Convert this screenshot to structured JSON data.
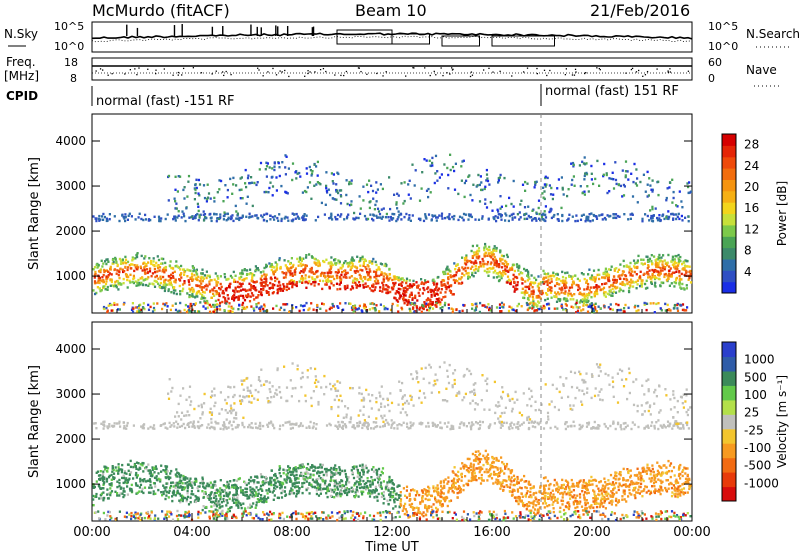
{
  "header": {
    "station": "McMurdo (fitACF)",
    "beam": "Beam 10",
    "date": "21/Feb/2016"
  },
  "aux": {
    "nsky_label": "N.Sky",
    "nsearch_label": "N.Search",
    "freq_label_1": "Freq.",
    "freq_label_2": "[MHz]",
    "nave_label": "Nave",
    "cpid_label": "CPID",
    "nsky_ticks": [
      "10^5",
      "10^0"
    ],
    "nsearch_ticks": [
      "10^5",
      "10^0"
    ],
    "freq_ticks": [
      "18",
      "8"
    ],
    "nave_ticks": [
      "60",
      "0"
    ],
    "cpid_segments": [
      "normal (fast) -151 RF",
      "normal (fast) 151 RF"
    ]
  },
  "time_axis": {
    "title": "Time UT",
    "ticks": [
      "00:00",
      "04:00",
      "08:00",
      "12:00",
      "16:00",
      "20:00",
      "00:00"
    ]
  },
  "chart_data": [
    {
      "type": "heatmap",
      "panel": "power",
      "xlabel": "Time UT",
      "ylabel": "Slant Range [km]",
      "x_range_hours": [
        0,
        24
      ],
      "y_ticks": [
        1000,
        2000,
        3000,
        4000
      ],
      "ylim": [
        180,
        4600
      ],
      "colorbar": {
        "label": "Power [dB]",
        "tick_labels": [
          "4",
          "8",
          "12",
          "16",
          "20",
          "24",
          "28"
        ],
        "colors": [
          "#1a2ee6",
          "#2f4fc4",
          "#2f6ea8",
          "#3c8a6a",
          "#4aa455",
          "#7cc94a",
          "#c7e03a",
          "#f3d51c",
          "#f6b014",
          "#f59410",
          "#f26d0d",
          "#ef4a0a",
          "#e52506",
          "#d60000"
        ]
      },
      "features": [
        {
          "name": "main band",
          "t_hours": [
            0,
            24
          ],
          "range_km": [
            500,
            1600
          ],
          "power_db": [
            10,
            30
          ]
        },
        {
          "name": "upper band",
          "t_hours": [
            0,
            24
          ],
          "range_km": [
            2300,
            2500
          ],
          "power_db": [
            4,
            14
          ]
        },
        {
          "name": "patches",
          "t_hours": [
            3,
            24
          ],
          "range_km": [
            2500,
            3500
          ],
          "power_db": [
            4,
            16
          ]
        }
      ]
    },
    {
      "type": "heatmap",
      "panel": "velocity",
      "xlabel": "Time UT",
      "ylabel": "Slant Range [km]",
      "x_range_hours": [
        0,
        24
      ],
      "y_ticks": [
        1000,
        2000,
        3000,
        4000
      ],
      "ylim": [
        180,
        4600
      ],
      "colorbar": {
        "label": "Velocity [m s⁻¹]",
        "tick_labels": [
          "1000",
          "500",
          "100",
          "25",
          "-25",
          "-100",
          "-500",
          "-1000"
        ],
        "colors": [
          "#2a3fcc",
          "#2f5ca8",
          "#3b8a5a",
          "#62c94a",
          "#b3e04a",
          "#c0c0bc",
          "#f3c52e",
          "#f79a20",
          "#f26b12",
          "#e83a0a",
          "#d80c0c"
        ]
      },
      "features": [
        {
          "name": "positive velocities",
          "t_hours": [
            0,
            12
          ],
          "range_km": [
            500,
            1700
          ],
          "velocity_ms": [
            100,
            500
          ]
        },
        {
          "name": "negative velocities",
          "t_hours": [
            12,
            24
          ],
          "range_km": [
            400,
            2200
          ],
          "velocity_ms": [
            -500,
            -100
          ]
        },
        {
          "name": "ground scatter",
          "t_hours": [
            0,
            24
          ],
          "range_km": [
            2300,
            2500
          ],
          "velocity_ms": [
            -25,
            25
          ]
        }
      ]
    }
  ]
}
